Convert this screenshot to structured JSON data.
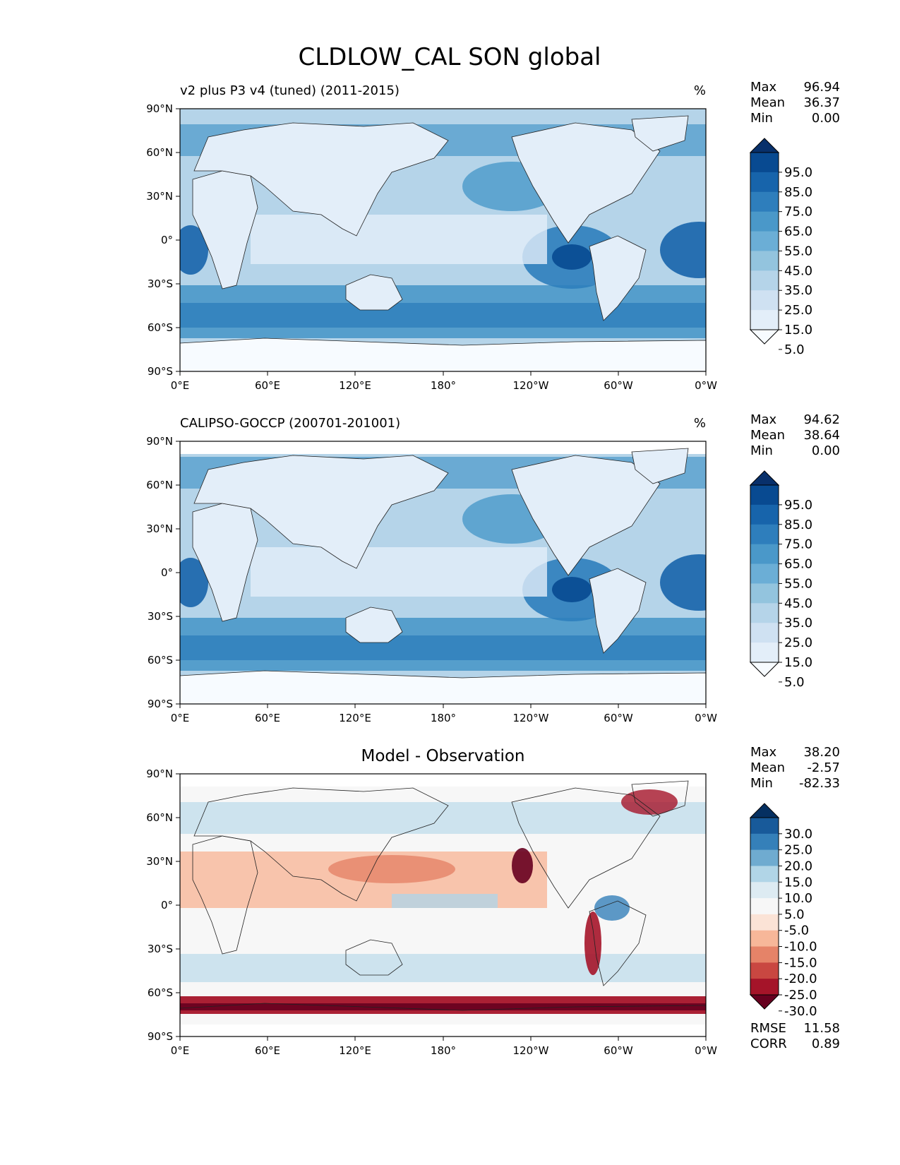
{
  "title": "CLDLOW_CAL SON global",
  "axes": {
    "lon_ticks": [
      "0°E",
      "60°E",
      "120°E",
      "180°",
      "120°W",
      "60°W",
      "0°W"
    ],
    "lat_ticks": [
      "90°N",
      "60°N",
      "30°N",
      "0°",
      "30°S",
      "60°S",
      "90°S"
    ]
  },
  "colors": {
    "blues": [
      "#f7fbff",
      "#e3eef9",
      "#cfe1f2",
      "#b5d4e9",
      "#93c4de",
      "#6baed6",
      "#4a98c9",
      "#2e7ebc",
      "#1764ab",
      "#084a91",
      "#08306b"
    ],
    "diverging": [
      "#67001f",
      "#a51429",
      "#c94741",
      "#e58368",
      "#f7b799",
      "#fbe3d6",
      "#f7f7f7",
      "#ddebf2",
      "#b1d5e7",
      "#6fabd0",
      "#3580b9",
      "#185a9a",
      "#053061"
    ]
  },
  "panels": [
    {
      "left_title": "v2 plus P3 v4 (tuned) (2011-2015)",
      "center_title": "",
      "units": "%",
      "stats": [
        {
          "label": "Max",
          "value": "96.94"
        },
        {
          "label": "Mean",
          "value": "36.37"
        },
        {
          "label": "Min",
          "value": "0.00"
        }
      ],
      "colorbar": {
        "scheme": "blues",
        "labels": [
          "95.0",
          "85.0",
          "75.0",
          "65.0",
          "55.0",
          "45.0",
          "35.0",
          "25.0",
          "15.0",
          "5.0"
        ]
      }
    },
    {
      "left_title": "CALIPSO-GOCCP (200701-201001)",
      "center_title": "",
      "units": "%",
      "stats": [
        {
          "label": "Max",
          "value": "94.62"
        },
        {
          "label": "Mean",
          "value": "38.64"
        },
        {
          "label": "Min",
          "value": "0.00"
        }
      ],
      "colorbar": {
        "scheme": "blues",
        "labels": [
          "95.0",
          "85.0",
          "75.0",
          "65.0",
          "55.0",
          "45.0",
          "35.0",
          "25.0",
          "15.0",
          "5.0"
        ]
      }
    },
    {
      "left_title": "",
      "center_title": "Model - Observation",
      "units": "",
      "stats": [
        {
          "label": "Max",
          "value": "38.20"
        },
        {
          "label": "Mean",
          "value": "-2.57"
        },
        {
          "label": "Min",
          "value": "-82.33"
        }
      ],
      "colorbar": {
        "scheme": "diverging",
        "labels": [
          "30.0",
          "25.0",
          "20.0",
          "15.0",
          "10.0",
          "5.0",
          "-5.0",
          "-10.0",
          "-15.0",
          "-20.0",
          "-25.0",
          "-30.0"
        ]
      },
      "metrics": [
        {
          "label": "RMSE",
          "value": "11.58"
        },
        {
          "label": "CORR",
          "value": "0.89"
        }
      ]
    }
  ],
  "chart_data": {
    "type": "heatmap",
    "title": "CLDLOW_CAL SON global",
    "variable": "CLDLOW_CAL",
    "season": "SON",
    "region": "global",
    "units": "%",
    "xlim": [
      0,
      360
    ],
    "ylim": [
      -90,
      90
    ],
    "panels": [
      {
        "name": "v2 plus P3 v4 (tuned) (2011-2015)",
        "max": 96.94,
        "mean": 36.37,
        "min": 0.0,
        "levels": [
          5,
          15,
          25,
          35,
          45,
          55,
          65,
          75,
          85,
          95
        ]
      },
      {
        "name": "CALIPSO-GOCCP (200701-201001)",
        "max": 94.62,
        "mean": 38.64,
        "min": 0.0,
        "levels": [
          5,
          15,
          25,
          35,
          45,
          55,
          65,
          75,
          85,
          95
        ]
      },
      {
        "name": "Model - Observation",
        "max": 38.2,
        "mean": -2.57,
        "min": -82.33,
        "rmse": 11.58,
        "corr": 0.89,
        "levels": [
          -30,
          -25,
          -20,
          -15,
          -10,
          -5,
          5,
          10,
          15,
          20,
          25,
          30
        ]
      }
    ]
  }
}
